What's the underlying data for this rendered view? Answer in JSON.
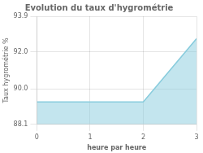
{
  "chart_data": {
    "type": "area",
    "title": "Evolution du taux d'hygrométrie",
    "xlabel": "heure par heure",
    "ylabel": "Taux hygrométrie %",
    "x": [
      0,
      2,
      3
    ],
    "values": [
      89.3,
      89.3,
      92.7
    ],
    "color": "#88ccdd",
    "xlim": [
      0,
      3
    ],
    "ylim": [
      88.1,
      93.9
    ],
    "xticks": [
      0,
      1,
      2,
      3
    ],
    "yticks": [
      88.1,
      {
        "value": 90,
        "label": "90.0"
      },
      {
        "value": 92,
        "label": "92.0"
      },
      93.9
    ],
    "grid": true
  }
}
